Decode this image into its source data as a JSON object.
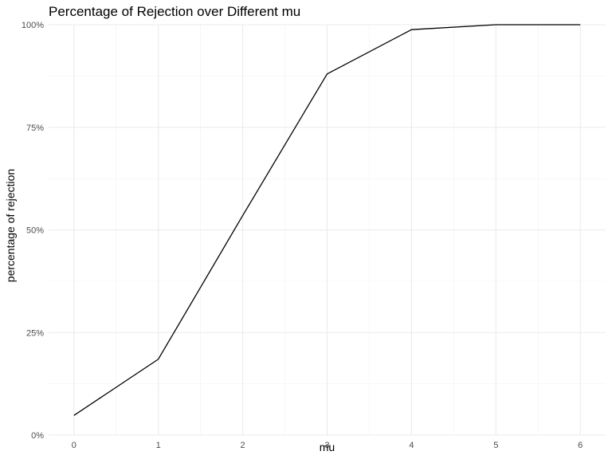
{
  "chart_data": {
    "type": "line",
    "title": "Percentage of Rejection over Different mu",
    "xlabel": "mu",
    "ylabel": "percentage of rejection",
    "x": [
      0,
      1,
      2,
      3,
      4,
      5,
      6
    ],
    "series": [
      {
        "values": [
          0.048,
          0.185,
          0.535,
          0.88,
          0.988,
          1.0,
          1.0
        ]
      }
    ],
    "xlim": [
      -0.3,
      6.3
    ],
    "ylim": [
      0,
      1.0
    ],
    "x_ticks": [
      0,
      1,
      2,
      3,
      4,
      5,
      6
    ],
    "x_tick_labels": [
      "0",
      "1",
      "2",
      "3",
      "4",
      "5",
      "6"
    ],
    "y_ticks": [
      0,
      0.25,
      0.5,
      0.75,
      1.0
    ],
    "y_tick_labels": [
      "0%",
      "25%",
      "50%",
      "75%",
      "100%"
    ],
    "grid": true,
    "legend": "none",
    "line_color": "#000000",
    "grid_color": "#ebebeb"
  }
}
